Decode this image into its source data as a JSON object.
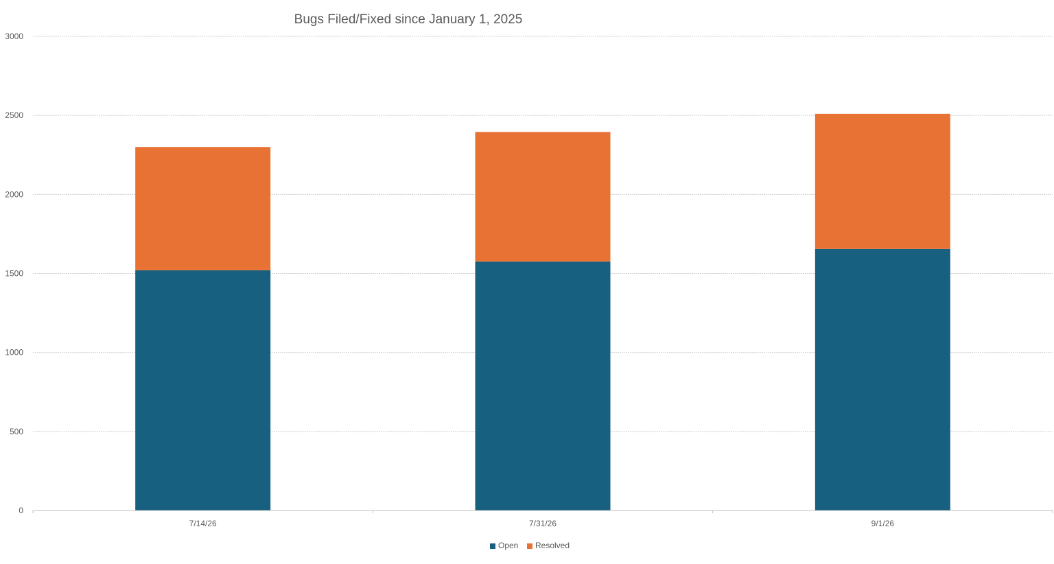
{
  "chart_data": {
    "type": "bar",
    "stacked": true,
    "title": "Bugs Filed/Fixed since January 1, 2025",
    "xlabel": "",
    "ylabel": "",
    "categories": [
      "7/14/26",
      "7/31/26",
      "9/1/26"
    ],
    "series": [
      {
        "name": "Open",
        "color": "#17607f",
        "values": [
          1520,
          1575,
          1655
        ]
      },
      {
        "name": "Resolved",
        "color": "#e87233",
        "values": [
          780,
          820,
          855
        ]
      }
    ],
    "ylim": [
      0,
      3000
    ],
    "yticks": [
      0,
      500,
      1000,
      1500,
      2000,
      2500,
      3000
    ],
    "grid": true,
    "legend": "bottom"
  }
}
